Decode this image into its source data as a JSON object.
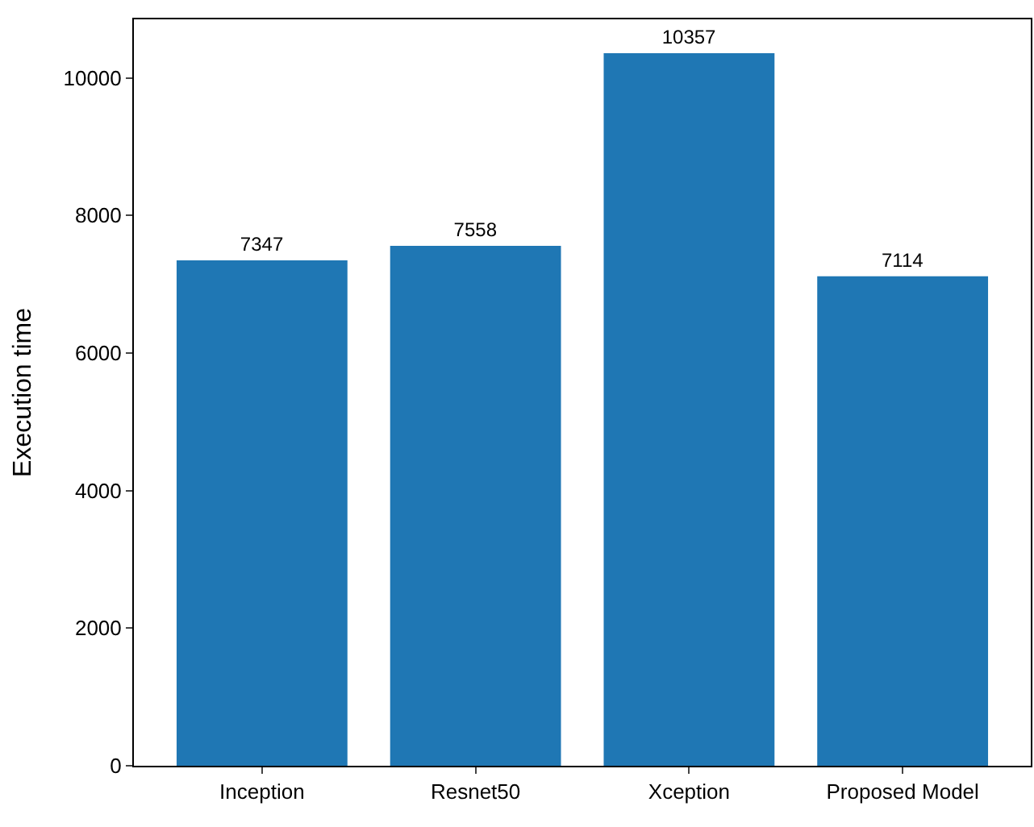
{
  "chart_data": {
    "type": "bar",
    "ylabel": "Execution time",
    "categories": [
      "Inception",
      "Resnet50",
      "Xception",
      "Proposed Model"
    ],
    "values": [
      7347,
      7558,
      10357,
      7114
    ],
    "color": "#1f77b4",
    "ylim": [
      0,
      10850
    ],
    "yticks": [
      0,
      2000,
      4000,
      6000,
      8000,
      10000
    ],
    "data_labels": true
  }
}
